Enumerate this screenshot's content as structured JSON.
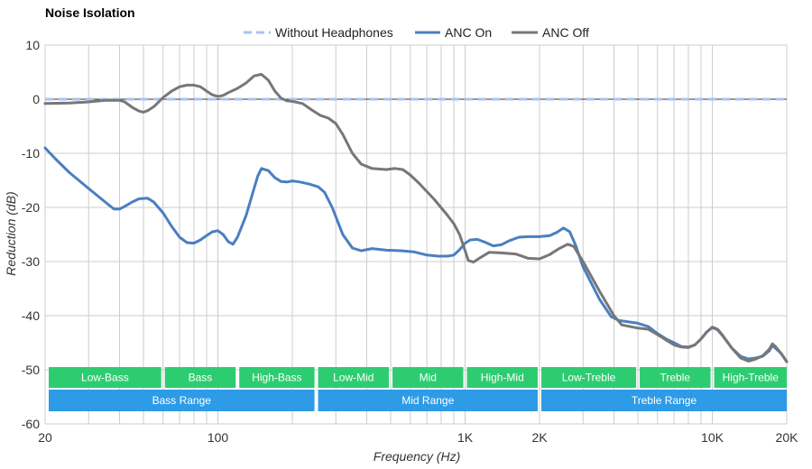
{
  "chart_data": {
    "type": "line",
    "title": "Noise Isolation",
    "xlabel": "Frequency (Hz)",
    "ylabel": "Reduction (dB)",
    "xscale": "log",
    "xlim": [
      20,
      20000
    ],
    "ylim": [
      -60,
      10
    ],
    "grid": true,
    "legend_position": "top",
    "x_tick_labels": [
      {
        "value": 20,
        "label": "20"
      },
      {
        "value": 100,
        "label": "100"
      },
      {
        "value": 1000,
        "label": "1K"
      },
      {
        "value": 2000,
        "label": "2K"
      },
      {
        "value": 10000,
        "label": "10K"
      },
      {
        "value": 20000,
        "label": "20K"
      }
    ],
    "y_ticks": [
      10,
      0,
      -10,
      -20,
      -30,
      -40,
      -50,
      -60
    ],
    "series": [
      {
        "name": "Without Headphones",
        "color": "#a8c4f2",
        "style": "dashed",
        "points": [
          [
            20,
            0
          ],
          [
            20000,
            0
          ]
        ]
      },
      {
        "name": "ANC On",
        "color": "#4a7fc0",
        "style": "solid",
        "points": [
          [
            20,
            -9
          ],
          [
            22,
            -11
          ],
          [
            25,
            -13.5
          ],
          [
            30,
            -16.5
          ],
          [
            35,
            -19
          ],
          [
            38,
            -20.3
          ],
          [
            40,
            -20.3
          ],
          [
            42,
            -19.8
          ],
          [
            45,
            -19
          ],
          [
            48,
            -18.4
          ],
          [
            52,
            -18.3
          ],
          [
            55,
            -19
          ],
          [
            60,
            -21
          ],
          [
            65,
            -23.5
          ],
          [
            70,
            -25.5
          ],
          [
            75,
            -26.5
          ],
          [
            80,
            -26.6
          ],
          [
            85,
            -26
          ],
          [
            90,
            -25.2
          ],
          [
            95,
            -24.5
          ],
          [
            100,
            -24.3
          ],
          [
            105,
            -25
          ],
          [
            110,
            -26.3
          ],
          [
            115,
            -26.8
          ],
          [
            120,
            -25.5
          ],
          [
            130,
            -21.5
          ],
          [
            140,
            -16.5
          ],
          [
            145,
            -14.2
          ],
          [
            150,
            -12.8
          ],
          [
            160,
            -13.2
          ],
          [
            170,
            -14.5
          ],
          [
            180,
            -15.2
          ],
          [
            190,
            -15.3
          ],
          [
            200,
            -15.1
          ],
          [
            215,
            -15.3
          ],
          [
            235,
            -15.7
          ],
          [
            255,
            -16.2
          ],
          [
            270,
            -17.2
          ],
          [
            290,
            -20
          ],
          [
            320,
            -25
          ],
          [
            350,
            -27.5
          ],
          [
            380,
            -28
          ],
          [
            420,
            -27.6
          ],
          [
            480,
            -27.9
          ],
          [
            550,
            -28
          ],
          [
            620,
            -28.2
          ],
          [
            700,
            -28.8
          ],
          [
            780,
            -29
          ],
          [
            850,
            -29
          ],
          [
            900,
            -28.8
          ],
          [
            950,
            -27.8
          ],
          [
            1000,
            -26.6
          ],
          [
            1050,
            -26
          ],
          [
            1120,
            -25.9
          ],
          [
            1200,
            -26.4
          ],
          [
            1300,
            -27.1
          ],
          [
            1400,
            -26.9
          ],
          [
            1500,
            -26.2
          ],
          [
            1650,
            -25.5
          ],
          [
            1800,
            -25.4
          ],
          [
            2000,
            -25.4
          ],
          [
            2200,
            -25.2
          ],
          [
            2350,
            -24.6
          ],
          [
            2500,
            -23.8
          ],
          [
            2650,
            -24.5
          ],
          [
            2800,
            -27
          ],
          [
            3000,
            -31
          ],
          [
            3500,
            -37
          ],
          [
            3900,
            -40.2
          ],
          [
            4200,
            -40.9
          ],
          [
            5000,
            -41.4
          ],
          [
            5500,
            -42
          ],
          [
            6000,
            -43.3
          ],
          [
            6500,
            -44.3
          ],
          [
            7000,
            -45
          ],
          [
            7500,
            -45.7
          ],
          [
            8000,
            -45.8
          ],
          [
            8500,
            -45.4
          ],
          [
            9000,
            -44.3
          ],
          [
            9500,
            -43
          ],
          [
            10000,
            -42.2
          ],
          [
            10500,
            -42.6
          ],
          [
            11000,
            -43.7
          ],
          [
            12000,
            -46
          ],
          [
            13000,
            -47.5
          ],
          [
            14000,
            -48
          ],
          [
            15000,
            -47.8
          ],
          [
            16000,
            -47.5
          ],
          [
            17000,
            -46.5
          ],
          [
            17500,
            -45.5
          ],
          [
            18000,
            -46
          ],
          [
            19000,
            -47
          ],
          [
            20000,
            -48.5
          ]
        ]
      },
      {
        "name": "ANC Off",
        "color": "#777777",
        "style": "solid",
        "points": [
          [
            20,
            -0.8
          ],
          [
            25,
            -0.7
          ],
          [
            30,
            -0.5
          ],
          [
            35,
            -0.2
          ],
          [
            40,
            -0.2
          ],
          [
            42,
            -0.5
          ],
          [
            45,
            -1.5
          ],
          [
            48,
            -2.2
          ],
          [
            50,
            -2.4
          ],
          [
            52,
            -2.1
          ],
          [
            55,
            -1.4
          ],
          [
            60,
            0.3
          ],
          [
            65,
            1.5
          ],
          [
            70,
            2.3
          ],
          [
            75,
            2.6
          ],
          [
            80,
            2.6
          ],
          [
            85,
            2.3
          ],
          [
            90,
            1.5
          ],
          [
            95,
            0.8
          ],
          [
            100,
            0.5
          ],
          [
            105,
            0.7
          ],
          [
            110,
            1.2
          ],
          [
            120,
            2
          ],
          [
            130,
            3
          ],
          [
            140,
            4.3
          ],
          [
            150,
            4.6
          ],
          [
            160,
            3.5
          ],
          [
            170,
            1.5
          ],
          [
            180,
            0.2
          ],
          [
            190,
            -0.3
          ],
          [
            200,
            -0.4
          ],
          [
            220,
            -0.8
          ],
          [
            240,
            -2
          ],
          [
            260,
            -3
          ],
          [
            280,
            -3.5
          ],
          [
            300,
            -4.5
          ],
          [
            320,
            -6.5
          ],
          [
            350,
            -10
          ],
          [
            380,
            -12
          ],
          [
            420,
            -12.8
          ],
          [
            480,
            -13
          ],
          [
            520,
            -12.8
          ],
          [
            560,
            -13
          ],
          [
            600,
            -14
          ],
          [
            650,
            -15.5
          ],
          [
            750,
            -18.5
          ],
          [
            850,
            -21.5
          ],
          [
            900,
            -23
          ],
          [
            950,
            -25
          ],
          [
            1000,
            -28
          ],
          [
            1030,
            -29.8
          ],
          [
            1080,
            -30.1
          ],
          [
            1150,
            -29.3
          ],
          [
            1250,
            -28.3
          ],
          [
            1400,
            -28.4
          ],
          [
            1600,
            -28.6
          ],
          [
            1800,
            -29.4
          ],
          [
            2000,
            -29.5
          ],
          [
            2200,
            -28.7
          ],
          [
            2400,
            -27.6
          ],
          [
            2600,
            -26.8
          ],
          [
            2750,
            -27.2
          ],
          [
            3000,
            -30
          ],
          [
            3500,
            -35.5
          ],
          [
            4000,
            -40
          ],
          [
            4300,
            -41.7
          ],
          [
            5000,
            -42.3
          ],
          [
            5500,
            -42.5
          ],
          [
            6000,
            -43.5
          ],
          [
            6500,
            -44.5
          ],
          [
            7000,
            -45.4
          ],
          [
            7500,
            -45.8
          ],
          [
            8000,
            -45.9
          ],
          [
            8500,
            -45.4
          ],
          [
            9000,
            -44.3
          ],
          [
            9500,
            -43
          ],
          [
            10000,
            -42.1
          ],
          [
            10500,
            -42.5
          ],
          [
            11000,
            -43.6
          ],
          [
            12000,
            -46
          ],
          [
            13000,
            -47.8
          ],
          [
            14000,
            -48.4
          ],
          [
            15000,
            -48
          ],
          [
            16000,
            -47.4
          ],
          [
            17000,
            -46.2
          ],
          [
            17500,
            -45.2
          ],
          [
            18000,
            -45.7
          ],
          [
            19000,
            -47
          ],
          [
            20000,
            -48.5
          ]
        ]
      }
    ],
    "range_bands": {
      "row1": [
        {
          "label": "Low-Bass",
          "from": 20,
          "to": 60,
          "color": "#2ecc71"
        },
        {
          "label": "Bass",
          "from": 60,
          "to": 120,
          "color": "#2ecc71"
        },
        {
          "label": "High-Bass",
          "from": 120,
          "to": 250,
          "color": "#2ecc71"
        },
        {
          "label": "Low-Mid",
          "from": 250,
          "to": 500,
          "color": "#2ecc71"
        },
        {
          "label": "Mid",
          "from": 500,
          "to": 1000,
          "color": "#2ecc71"
        },
        {
          "label": "High-Mid",
          "from": 1000,
          "to": 2000,
          "color": "#2ecc71"
        },
        {
          "label": "Low-Treble",
          "from": 2000,
          "to": 5000,
          "color": "#2ecc71"
        },
        {
          "label": "Treble",
          "from": 5000,
          "to": 10000,
          "color": "#2ecc71"
        },
        {
          "label": "High-Treble",
          "from": 10000,
          "to": 20000,
          "color": "#2ecc71"
        }
      ],
      "row2": [
        {
          "label": "Bass Range",
          "from": 20,
          "to": 250,
          "color": "#2e9be6"
        },
        {
          "label": "Mid Range",
          "from": 250,
          "to": 2000,
          "color": "#2e9be6"
        },
        {
          "label": "Treble Range",
          "from": 2000,
          "to": 20000,
          "color": "#2e9be6"
        }
      ]
    }
  }
}
